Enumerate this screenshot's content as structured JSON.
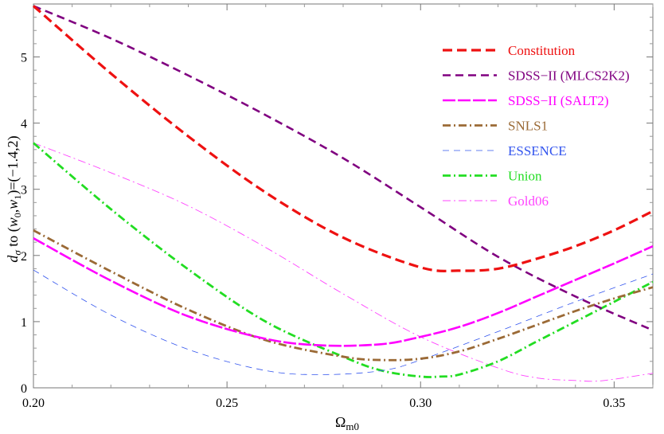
{
  "chart_data": {
    "type": "line",
    "title": "",
    "xlabel": "Ω",
    "xlabel_subscript": "m0",
    "ylabel_parts": {
      "d": "d",
      "sigma": "σ",
      "mid": " to (",
      "w": "w",
      "zero": "0",
      "comma": ",",
      "one": "1",
      "tail": ")=(−1.4,2)"
    },
    "xlim": [
      0.2,
      0.36
    ],
    "ylim": [
      0,
      5.8
    ],
    "xticks": [
      0.2,
      0.25,
      0.3,
      0.35
    ],
    "xtick_labels": [
      "0.20",
      "0.25",
      "0.30",
      "0.35"
    ],
    "yticks": [
      0,
      1,
      2,
      3,
      4,
      5
    ],
    "ytick_labels": [
      "0",
      "1",
      "2",
      "3",
      "4",
      "5"
    ],
    "legend_position": "top-right",
    "series": [
      {
        "name": "Constitution",
        "color": "#ee1111",
        "style": "dashed-thick",
        "x": [
          0.2,
          0.22,
          0.24,
          0.26,
          0.28,
          0.3,
          0.31,
          0.32,
          0.33,
          0.34,
          0.35,
          0.36
        ],
        "y": [
          5.77,
          4.75,
          3.8,
          2.95,
          2.27,
          1.82,
          1.77,
          1.8,
          1.95,
          2.14,
          2.38,
          2.67
        ]
      },
      {
        "name": "SDSS−II (MLCS2K2)",
        "color": "#800080",
        "style": "dashed",
        "x": [
          0.2,
          0.22,
          0.24,
          0.26,
          0.28,
          0.3,
          0.32,
          0.34,
          0.36
        ],
        "y": [
          5.77,
          5.28,
          4.72,
          4.12,
          3.47,
          2.73,
          1.98,
          1.38,
          0.87
        ]
      },
      {
        "name": "SDSS−II (SALT2)",
        "color": "#ff00ff",
        "style": "solid-dashed",
        "x": [
          0.2,
          0.22,
          0.24,
          0.26,
          0.275,
          0.29,
          0.3,
          0.31,
          0.32,
          0.33,
          0.34,
          0.35,
          0.36
        ],
        "y": [
          2.26,
          1.62,
          1.08,
          0.74,
          0.64,
          0.66,
          0.77,
          0.92,
          1.13,
          1.38,
          1.63,
          1.88,
          2.14
        ]
      },
      {
        "name": "SNLS1",
        "color": "#9b6a36",
        "style": "dashdot",
        "x": [
          0.2,
          0.22,
          0.24,
          0.26,
          0.28,
          0.29,
          0.3,
          0.31,
          0.32,
          0.33,
          0.34,
          0.35,
          0.36
        ],
        "y": [
          2.38,
          1.76,
          1.18,
          0.72,
          0.47,
          0.42,
          0.44,
          0.55,
          0.74,
          0.95,
          1.16,
          1.35,
          1.52
        ]
      },
      {
        "name": "ESSENCE",
        "color": "#3355ee",
        "style": "dashed-thin",
        "x": [
          0.2,
          0.22,
          0.24,
          0.26,
          0.275,
          0.29,
          0.3,
          0.32,
          0.34,
          0.36
        ],
        "y": [
          1.78,
          1.1,
          0.58,
          0.26,
          0.2,
          0.26,
          0.42,
          0.85,
          1.3,
          1.72
        ]
      },
      {
        "name": "Union",
        "color": "#22dd22",
        "style": "dashdot",
        "x": [
          0.2,
          0.22,
          0.24,
          0.26,
          0.28,
          0.29,
          0.3,
          0.305,
          0.31,
          0.32,
          0.33,
          0.34,
          0.35,
          0.36
        ],
        "y": [
          3.7,
          2.7,
          1.79,
          1.0,
          0.47,
          0.26,
          0.17,
          0.17,
          0.2,
          0.4,
          0.7,
          1.0,
          1.3,
          1.6
        ]
      },
      {
        "name": "Gold06",
        "color": "#ff44ff",
        "style": "dashdot-thin",
        "x": [
          0.2,
          0.22,
          0.24,
          0.26,
          0.28,
          0.3,
          0.32,
          0.33,
          0.34,
          0.345,
          0.35,
          0.36
        ],
        "y": [
          3.7,
          3.25,
          2.75,
          2.12,
          1.42,
          0.77,
          0.3,
          0.15,
          0.11,
          0.1,
          0.13,
          0.22
        ]
      }
    ]
  }
}
